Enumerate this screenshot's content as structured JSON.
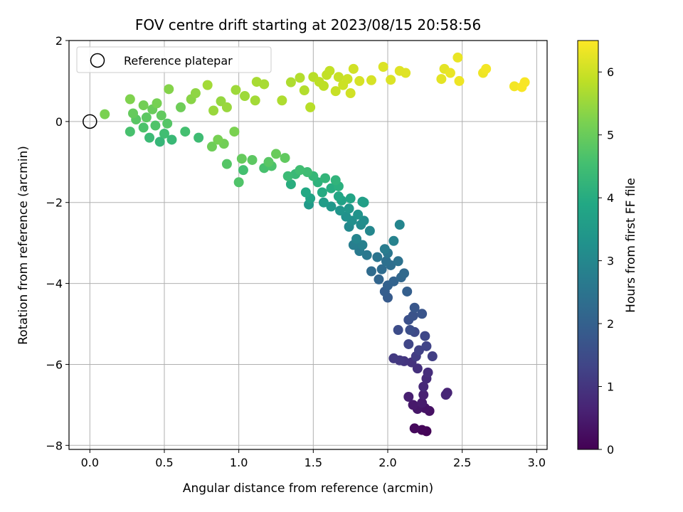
{
  "chart_data": {
    "type": "scatter",
    "title": "FOV centre drift starting at 2023/08/15 20:58:56",
    "xlabel": "Angular distance from reference (arcmin)",
    "ylabel": "Rotation from reference (arcmin)",
    "xlim": [
      -0.14,
      3.07
    ],
    "ylim": [
      -8.1,
      2.0
    ],
    "xticks": [
      0.0,
      0.5,
      1.0,
      1.5,
      2.0,
      2.5,
      3.0
    ],
    "xtick_labels": [
      "0.0",
      "0.5",
      "1.0",
      "1.5",
      "2.0",
      "2.5",
      "3.0"
    ],
    "yticks": [
      2,
      0,
      -2,
      -4,
      -6,
      -8
    ],
    "ytick_labels": [
      "2",
      "0",
      "−2",
      "−4",
      "−6",
      "−8"
    ],
    "grid": true,
    "legend": {
      "position": "top-left",
      "entries": [
        "Reference platepar"
      ]
    },
    "reference_point": {
      "x": 0.0,
      "y": 0.0
    },
    "colorbar": {
      "label": "Hours from first FF file",
      "colormap": "viridis",
      "range": [
        0,
        6.5
      ],
      "ticks": [
        0,
        1,
        2,
        3,
        4,
        5,
        6
      ],
      "tick_labels": [
        "0",
        "1",
        "2",
        "3",
        "4",
        "5",
        "6"
      ]
    },
    "points": [
      {
        "x": 2.26,
        "y": -7.65,
        "h": 0.05
      },
      {
        "x": 2.23,
        "y": -7.62,
        "h": 0.1
      },
      {
        "x": 2.18,
        "y": -7.58,
        "h": 0.15
      },
      {
        "x": 2.28,
        "y": -7.15,
        "h": 0.3
      },
      {
        "x": 2.25,
        "y": -7.08,
        "h": 0.35
      },
      {
        "x": 2.2,
        "y": -7.1,
        "h": 0.4
      },
      {
        "x": 2.17,
        "y": -7.0,
        "h": 0.45
      },
      {
        "x": 2.23,
        "y": -6.95,
        "h": 0.5
      },
      {
        "x": 2.14,
        "y": -6.8,
        "h": 0.55
      },
      {
        "x": 2.24,
        "y": -6.75,
        "h": 0.6
      },
      {
        "x": 2.4,
        "y": -6.7,
        "h": 0.65
      },
      {
        "x": 2.39,
        "y": -6.75,
        "h": 0.7
      },
      {
        "x": 2.24,
        "y": -6.55,
        "h": 0.75
      },
      {
        "x": 2.26,
        "y": -6.35,
        "h": 0.8
      },
      {
        "x": 2.27,
        "y": -6.2,
        "h": 0.85
      },
      {
        "x": 2.2,
        "y": -6.1,
        "h": 0.9
      },
      {
        "x": 2.16,
        "y": -5.95,
        "h": 0.95
      },
      {
        "x": 2.11,
        "y": -5.92,
        "h": 1.0
      },
      {
        "x": 2.08,
        "y": -5.9,
        "h": 1.05
      },
      {
        "x": 2.04,
        "y": -5.85,
        "h": 1.1
      },
      {
        "x": 2.19,
        "y": -5.8,
        "h": 1.15
      },
      {
        "x": 2.3,
        "y": -5.8,
        "h": 1.2
      },
      {
        "x": 2.21,
        "y": -5.65,
        "h": 1.25
      },
      {
        "x": 2.26,
        "y": -5.55,
        "h": 1.3
      },
      {
        "x": 2.14,
        "y": -5.5,
        "h": 1.35
      },
      {
        "x": 2.25,
        "y": -5.3,
        "h": 1.4
      },
      {
        "x": 2.18,
        "y": -5.2,
        "h": 1.45
      },
      {
        "x": 2.07,
        "y": -5.15,
        "h": 1.5
      },
      {
        "x": 2.15,
        "y": -5.15,
        "h": 1.55
      },
      {
        "x": 2.14,
        "y": -4.9,
        "h": 1.6
      },
      {
        "x": 2.17,
        "y": -4.8,
        "h": 1.65
      },
      {
        "x": 2.23,
        "y": -4.75,
        "h": 1.7
      },
      {
        "x": 2.18,
        "y": -4.6,
        "h": 1.75
      },
      {
        "x": 2.0,
        "y": -4.35,
        "h": 1.85
      },
      {
        "x": 1.98,
        "y": -4.2,
        "h": 1.9
      },
      {
        "x": 2.13,
        "y": -4.2,
        "h": 1.95
      },
      {
        "x": 2.0,
        "y": -4.05,
        "h": 2.0
      },
      {
        "x": 2.04,
        "y": -3.95,
        "h": 2.05
      },
      {
        "x": 1.94,
        "y": -3.9,
        "h": 2.1
      },
      {
        "x": 2.09,
        "y": -3.85,
        "h": 2.15
      },
      {
        "x": 2.11,
        "y": -3.75,
        "h": 2.2
      },
      {
        "x": 1.89,
        "y": -3.7,
        "h": 2.25
      },
      {
        "x": 1.96,
        "y": -3.65,
        "h": 2.3
      },
      {
        "x": 2.02,
        "y": -3.55,
        "h": 2.35
      },
      {
        "x": 1.99,
        "y": -3.45,
        "h": 2.4
      },
      {
        "x": 2.07,
        "y": -3.45,
        "h": 2.45
      },
      {
        "x": 1.93,
        "y": -3.35,
        "h": 2.5
      },
      {
        "x": 2.0,
        "y": -3.25,
        "h": 2.55
      },
      {
        "x": 1.86,
        "y": -3.3,
        "h": 2.6
      },
      {
        "x": 1.81,
        "y": -3.2,
        "h": 2.65
      },
      {
        "x": 1.98,
        "y": -3.15,
        "h": 2.7
      },
      {
        "x": 1.77,
        "y": -3.05,
        "h": 2.75
      },
      {
        "x": 1.83,
        "y": -3.05,
        "h": 2.8
      },
      {
        "x": 2.04,
        "y": -2.95,
        "h": 2.85
      },
      {
        "x": 1.79,
        "y": -2.9,
        "h": 2.9
      },
      {
        "x": 2.08,
        "y": -2.55,
        "h": 2.95
      },
      {
        "x": 1.88,
        "y": -2.7,
        "h": 3.0
      },
      {
        "x": 1.74,
        "y": -2.6,
        "h": 3.05
      },
      {
        "x": 1.82,
        "y": -2.55,
        "h": 3.1
      },
      {
        "x": 1.84,
        "y": -2.45,
        "h": 3.15
      },
      {
        "x": 1.76,
        "y": -2.45,
        "h": 3.2
      },
      {
        "x": 1.72,
        "y": -2.35,
        "h": 3.25
      },
      {
        "x": 1.8,
        "y": -2.3,
        "h": 3.3
      },
      {
        "x": 1.68,
        "y": -2.2,
        "h": 3.35
      },
      {
        "x": 1.74,
        "y": -2.15,
        "h": 3.4
      },
      {
        "x": 1.62,
        "y": -2.1,
        "h": 3.45
      },
      {
        "x": 1.47,
        "y": -2.05,
        "h": 3.5
      },
      {
        "x": 1.57,
        "y": -2.0,
        "h": 3.55
      },
      {
        "x": 1.83,
        "y": -1.98,
        "h": 3.6
      },
      {
        "x": 1.84,
        "y": -2.0,
        "h": 3.65
      },
      {
        "x": 1.69,
        "y": -1.95,
        "h": 3.7
      },
      {
        "x": 1.48,
        "y": -1.9,
        "h": 3.75
      },
      {
        "x": 1.75,
        "y": -1.9,
        "h": 3.8
      },
      {
        "x": 1.67,
        "y": -1.85,
        "h": 3.85
      },
      {
        "x": 1.45,
        "y": -1.75,
        "h": 3.9
      },
      {
        "x": 1.56,
        "y": -1.75,
        "h": 3.95
      },
      {
        "x": 1.62,
        "y": -1.65,
        "h": 4.0
      },
      {
        "x": 1.35,
        "y": -1.55,
        "h": 4.05
      },
      {
        "x": 1.67,
        "y": -1.6,
        "h": 4.1
      },
      {
        "x": 1.53,
        "y": -1.5,
        "h": 4.15
      },
      {
        "x": 1.65,
        "y": -1.45,
        "h": 4.2
      },
      {
        "x": 1.58,
        "y": -1.4,
        "h": 4.25
      },
      {
        "x": 1.5,
        "y": -1.35,
        "h": 4.3
      },
      {
        "x": 1.38,
        "y": -1.3,
        "h": 4.35
      },
      {
        "x": 1.33,
        "y": -1.35,
        "h": 4.4
      },
      {
        "x": 1.46,
        "y": -1.25,
        "h": 4.45
      },
      {
        "x": 1.41,
        "y": -1.2,
        "h": 4.5
      },
      {
        "x": 1.03,
        "y": -1.2,
        "h": 4.55
      },
      {
        "x": 1.17,
        "y": -1.15,
        "h": 4.6
      },
      {
        "x": 1.22,
        "y": -1.1,
        "h": 4.65
      },
      {
        "x": 1.0,
        "y": -1.5,
        "h": 4.7
      },
      {
        "x": 0.92,
        "y": -1.05,
        "h": 4.75
      },
      {
        "x": 1.2,
        "y": -1.0,
        "h": 4.8
      },
      {
        "x": 1.09,
        "y": -0.95,
        "h": 4.85
      },
      {
        "x": 1.31,
        "y": -0.9,
        "h": 4.9
      },
      {
        "x": 1.02,
        "y": -0.92,
        "h": 4.95
      },
      {
        "x": 1.25,
        "y": -0.8,
        "h": 5.0
      },
      {
        "x": 0.82,
        "y": -0.62,
        "h": 5.05
      },
      {
        "x": 0.9,
        "y": -0.55,
        "h": 5.1
      },
      {
        "x": 0.86,
        "y": -0.45,
        "h": 5.15
      },
      {
        "x": 0.97,
        "y": -0.25,
        "h": 5.2
      },
      {
        "x": 0.47,
        "y": -0.5,
        "h": 4.3
      },
      {
        "x": 0.55,
        "y": -0.45,
        "h": 4.35
      },
      {
        "x": 0.4,
        "y": -0.4,
        "h": 4.4
      },
      {
        "x": 0.73,
        "y": -0.4,
        "h": 4.45
      },
      {
        "x": 0.5,
        "y": -0.3,
        "h": 4.5
      },
      {
        "x": 0.64,
        "y": -0.25,
        "h": 4.55
      },
      {
        "x": 0.27,
        "y": -0.25,
        "h": 4.6
      },
      {
        "x": 0.36,
        "y": -0.15,
        "h": 4.65
      },
      {
        "x": 0.44,
        "y": -0.1,
        "h": 4.7
      },
      {
        "x": 0.52,
        "y": -0.05,
        "h": 4.75
      },
      {
        "x": 0.31,
        "y": 0.05,
        "h": 4.8
      },
      {
        "x": 0.38,
        "y": 0.1,
        "h": 4.85
      },
      {
        "x": 0.48,
        "y": 0.15,
        "h": 4.9
      },
      {
        "x": 0.29,
        "y": 0.2,
        "h": 4.95
      },
      {
        "x": 0.42,
        "y": 0.3,
        "h": 5.0
      },
      {
        "x": 0.61,
        "y": 0.35,
        "h": 5.05
      },
      {
        "x": 0.36,
        "y": 0.4,
        "h": 5.1
      },
      {
        "x": 0.45,
        "y": 0.45,
        "h": 5.15
      },
      {
        "x": 0.1,
        "y": 0.18,
        "h": 5.2
      },
      {
        "x": 0.27,
        "y": 0.55,
        "h": 5.25
      },
      {
        "x": 0.53,
        "y": 0.8,
        "h": 5.3
      },
      {
        "x": 0.68,
        "y": 0.55,
        "h": 5.35
      },
      {
        "x": 0.71,
        "y": 0.7,
        "h": 5.4
      },
      {
        "x": 0.88,
        "y": 0.5,
        "h": 5.45
      },
      {
        "x": 0.92,
        "y": 0.35,
        "h": 5.5
      },
      {
        "x": 0.83,
        "y": 0.27,
        "h": 5.5
      },
      {
        "x": 0.98,
        "y": 0.78,
        "h": 5.55
      },
      {
        "x": 1.04,
        "y": 0.63,
        "h": 5.55
      },
      {
        "x": 1.11,
        "y": 0.52,
        "h": 5.6
      },
      {
        "x": 0.79,
        "y": 0.9,
        "h": 5.6
      },
      {
        "x": 1.12,
        "y": 0.98,
        "h": 5.65
      },
      {
        "x": 1.17,
        "y": 0.92,
        "h": 5.65
      },
      {
        "x": 1.29,
        "y": 0.52,
        "h": 5.7
      },
      {
        "x": 1.35,
        "y": 0.97,
        "h": 5.7
      },
      {
        "x": 1.41,
        "y": 1.08,
        "h": 5.75
      },
      {
        "x": 1.44,
        "y": 0.77,
        "h": 5.75
      },
      {
        "x": 1.48,
        "y": 0.35,
        "h": 5.8
      },
      {
        "x": 1.5,
        "y": 1.1,
        "h": 5.8
      },
      {
        "x": 1.54,
        "y": 0.98,
        "h": 5.85
      },
      {
        "x": 1.57,
        "y": 0.88,
        "h": 5.85
      },
      {
        "x": 1.59,
        "y": 1.15,
        "h": 5.9
      },
      {
        "x": 1.61,
        "y": 1.25,
        "h": 5.9
      },
      {
        "x": 1.65,
        "y": 0.75,
        "h": 5.95
      },
      {
        "x": 1.67,
        "y": 1.1,
        "h": 5.95
      },
      {
        "x": 1.7,
        "y": 0.9,
        "h": 6.0
      },
      {
        "x": 1.73,
        "y": 1.05,
        "h": 6.0
      },
      {
        "x": 1.75,
        "y": 0.7,
        "h": 6.05
      },
      {
        "x": 1.77,
        "y": 1.3,
        "h": 6.05
      },
      {
        "x": 1.81,
        "y": 1.0,
        "h": 6.1
      },
      {
        "x": 1.89,
        "y": 1.02,
        "h": 6.1
      },
      {
        "x": 1.97,
        "y": 1.35,
        "h": 6.15
      },
      {
        "x": 2.02,
        "y": 1.03,
        "h": 6.15
      },
      {
        "x": 2.08,
        "y": 1.25,
        "h": 6.2
      },
      {
        "x": 2.12,
        "y": 1.2,
        "h": 6.2
      },
      {
        "x": 2.36,
        "y": 1.05,
        "h": 6.25
      },
      {
        "x": 2.38,
        "y": 1.3,
        "h": 6.25
      },
      {
        "x": 2.42,
        "y": 1.2,
        "h": 6.3
      },
      {
        "x": 2.47,
        "y": 1.58,
        "h": 6.3
      },
      {
        "x": 2.48,
        "y": 1.0,
        "h": 6.35
      },
      {
        "x": 2.64,
        "y": 1.2,
        "h": 6.35
      },
      {
        "x": 2.66,
        "y": 1.3,
        "h": 6.4
      },
      {
        "x": 2.85,
        "y": 0.87,
        "h": 6.4
      },
      {
        "x": 2.9,
        "y": 0.85,
        "h": 6.45
      },
      {
        "x": 2.92,
        "y": 0.97,
        "h": 6.45
      }
    ]
  }
}
